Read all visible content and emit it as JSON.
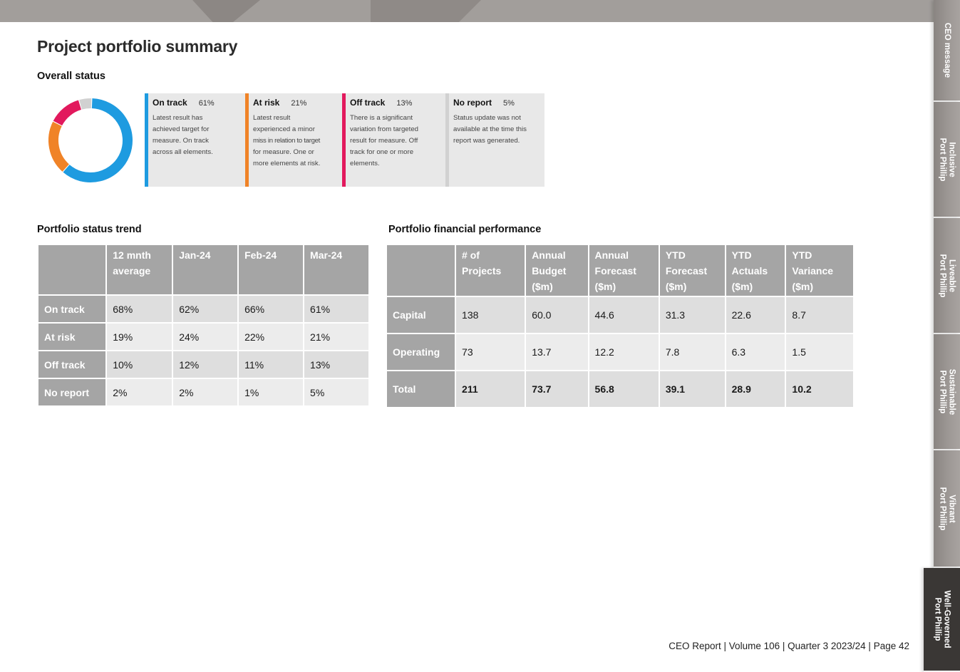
{
  "title": "Project portfolio summary",
  "overall_status": {
    "heading": "Overall status",
    "cards": [
      {
        "name": "On track",
        "pct": "61%",
        "color": "#1e9be0",
        "desc": [
          "Latest result has",
          "achieved target for",
          "measure. On track",
          "across all elements."
        ]
      },
      {
        "name": "At risk",
        "pct": "21%",
        "color": "#f08327",
        "desc": [
          "Latest result",
          "experienced a minor",
          "miss in relation to target",
          "for measure. One or",
          "more elements at risk."
        ]
      },
      {
        "name": "Off track",
        "pct": "13%",
        "color": "#e2195d",
        "desc": [
          "There is a significant",
          "variation from targeted",
          "result for measure. Off",
          "track for one or more",
          "elements."
        ]
      },
      {
        "name": "No report",
        "pct": "5%",
        "color": "#d1d1d1",
        "desc": [
          "Status update was not",
          "available at the time this",
          "report was generated."
        ]
      }
    ]
  },
  "chart_data": {
    "type": "pie",
    "donut": true,
    "categories": [
      "On track",
      "At risk",
      "Off track",
      "No report"
    ],
    "values": [
      61,
      21,
      13,
      5
    ],
    "colors": [
      "#1e9be0",
      "#f08327",
      "#e2195d",
      "#d1d1d1"
    ]
  },
  "trend": {
    "heading": "Portfolio status trend",
    "columns": [
      "12 mnth average",
      "Jan-24",
      "Feb-24",
      "Mar-24"
    ],
    "rows": [
      {
        "label": "On track",
        "values": [
          "68%",
          "62%",
          "66%",
          "61%"
        ]
      },
      {
        "label": "At risk",
        "values": [
          "19%",
          "24%",
          "22%",
          "21%"
        ]
      },
      {
        "label": "Off track",
        "values": [
          "10%",
          "12%",
          "11%",
          "13%"
        ]
      },
      {
        "label": "No report",
        "values": [
          "2%",
          "2%",
          "1%",
          "5%"
        ]
      }
    ]
  },
  "financial": {
    "heading": "Portfolio financial performance",
    "columns": [
      "# of Projects",
      "Annual Budget ($m)",
      "Annual Forecast ($m)",
      "YTD Forecast ($m)",
      "YTD Actuals ($m)",
      "YTD Variance ($m)"
    ],
    "rows": [
      {
        "label": "Capital",
        "values": [
          "138",
          "60.0",
          "44.6",
          "31.3",
          "22.6",
          "8.7"
        ]
      },
      {
        "label": "Operating",
        "values": [
          "73",
          "13.7",
          "12.2",
          "7.8",
          "6.3",
          "1.5"
        ]
      },
      {
        "label": "Total",
        "values": [
          "211",
          "73.7",
          "56.8",
          "39.1",
          "28.9",
          "10.2"
        ]
      }
    ]
  },
  "side_tabs": [
    {
      "lines": [
        "CEO message"
      ]
    },
    {
      "lines": [
        "Inclusive",
        "Port Phillip"
      ]
    },
    {
      "lines": [
        "Liveable",
        "Port Phillip"
      ]
    },
    {
      "lines": [
        "Sustainable",
        "Port Phillip"
      ]
    },
    {
      "lines": [
        "Vibrant",
        "Port Phillip"
      ]
    },
    {
      "lines": [
        "Well-Governed",
        "Port Phillip"
      ],
      "active": true
    }
  ],
  "footer": "CEO Report | Volume 106 | Quarter 3 2023/24 | Page 42"
}
